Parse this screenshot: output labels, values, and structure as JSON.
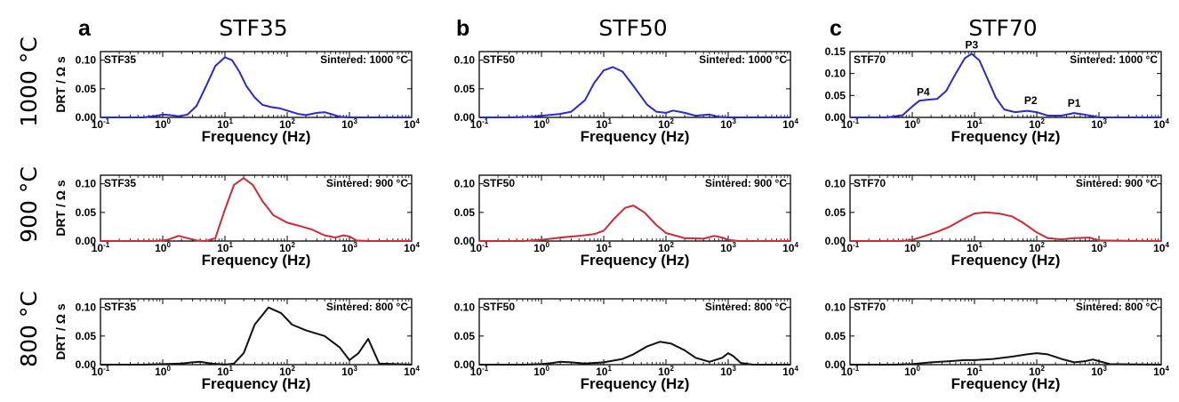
{
  "figure": {
    "columns": [
      {
        "letter": "a",
        "title": "STF35"
      },
      {
        "letter": "b",
        "title": "STF50"
      },
      {
        "letter": "c",
        "title": "STF70"
      }
    ],
    "rows": [
      {
        "label": "1000 °C",
        "color": "#2a2acc"
      },
      {
        "label": "900 °C",
        "color": "#cc2a36"
      },
      {
        "label": "800 °C",
        "color": "#111111"
      }
    ]
  },
  "chart_data": [
    {
      "type": "line",
      "panel_label": "STF35",
      "annotation": "Sintered: 1000 °C",
      "series_color": "#2a2acc",
      "xscale": "log",
      "xlim": [
        0.1,
        10000
      ],
      "ylim": [
        0,
        0.115
      ],
      "yticks": [
        "0.00",
        "0.05",
        "0.10"
      ],
      "xlabel": "Frequency (Hz)",
      "ylabel": "DRT / Ω s",
      "grid": false,
      "x": [
        0.1,
        0.5,
        0.8,
        1.0,
        1.3,
        1.8,
        2.5,
        3.5,
        5,
        7,
        10,
        13,
        17,
        22,
        30,
        40,
        55,
        75,
        100,
        150,
        200,
        300,
        400,
        500,
        700,
        1000,
        10000
      ],
      "y": [
        0,
        0.0,
        0.003,
        0.005,
        0.004,
        0.002,
        0.005,
        0.02,
        0.055,
        0.09,
        0.105,
        0.1,
        0.08,
        0.055,
        0.035,
        0.022,
        0.018,
        0.016,
        0.012,
        0.006,
        0.004,
        0.008,
        0.009,
        0.006,
        0.001,
        0,
        0
      ]
    },
    {
      "type": "line",
      "panel_label": "STF50",
      "annotation": "Sintered: 1000 °C",
      "series_color": "#2a2acc",
      "xscale": "log",
      "xlim": [
        0.1,
        10000
      ],
      "ylim": [
        0,
        0.115
      ],
      "yticks": [
        "0.00",
        "0.05",
        "0.10"
      ],
      "xlabel": "Frequency (Hz)",
      "ylabel": "",
      "grid": false,
      "x": [
        0.1,
        0.3,
        0.7,
        1,
        2,
        3,
        5,
        7,
        10,
        14,
        20,
        30,
        50,
        70,
        100,
        130,
        200,
        300,
        500,
        700,
        1000,
        10000
      ],
      "y": [
        0,
        0,
        0.001,
        0.003,
        0.006,
        0.01,
        0.03,
        0.06,
        0.082,
        0.088,
        0.08,
        0.055,
        0.022,
        0.01,
        0.008,
        0.012,
        0.008,
        0.003,
        0.005,
        0.001,
        0,
        0
      ]
    },
    {
      "type": "line",
      "panel_label": "STF70",
      "annotation": "Sintered: 1000 °C",
      "series_color": "#2a2acc",
      "xscale": "log",
      "xlim": [
        0.1,
        10000
      ],
      "ylim": [
        0,
        0.15
      ],
      "yticks": [
        "0.00",
        "0.05",
        "0.10",
        "0.15"
      ],
      "xlabel": "Frequency (Hz)",
      "ylabel": "",
      "grid": false,
      "peaks": [
        {
          "label": "P4",
          "x": 1.5,
          "y": 0.038
        },
        {
          "label": "P3",
          "x": 9,
          "y": 0.145
        },
        {
          "label": "P2",
          "x": 80,
          "y": 0.018
        },
        {
          "label": "P1",
          "x": 400,
          "y": 0.012
        }
      ],
      "x": [
        0.1,
        0.4,
        0.7,
        1.0,
        1.3,
        1.7,
        2.5,
        3.5,
        5,
        7,
        9,
        12,
        16,
        22,
        30,
        45,
        70,
        100,
        150,
        250,
        400,
        600,
        1000,
        10000
      ],
      "y": [
        0,
        0,
        0.005,
        0.025,
        0.038,
        0.04,
        0.042,
        0.06,
        0.1,
        0.135,
        0.145,
        0.13,
        0.09,
        0.045,
        0.018,
        0.012,
        0.015,
        0.012,
        0.004,
        0.004,
        0.01,
        0.006,
        0,
        0
      ]
    },
    {
      "type": "line",
      "panel_label": "STF35",
      "annotation": "Sintered: 900 °C",
      "series_color": "#cc2a36",
      "xscale": "log",
      "xlim": [
        0.1,
        10000
      ],
      "ylim": [
        0,
        0.115
      ],
      "yticks": [
        "0.00",
        "0.05",
        "0.10"
      ],
      "xlabel": "Frequency (Hz)",
      "ylabel": "DRT / Ω s",
      "grid": false,
      "x": [
        0.1,
        0.8,
        1.2,
        1.8,
        2.5,
        3.5,
        5,
        7,
        10,
        14,
        20,
        28,
        40,
        60,
        100,
        150,
        250,
        400,
        600,
        800,
        1000,
        1300,
        2000,
        10000
      ],
      "y": [
        0,
        0,
        0.002,
        0.009,
        0.005,
        0.001,
        0.0,
        0.005,
        0.055,
        0.098,
        0.11,
        0.098,
        0.07,
        0.045,
        0.032,
        0.027,
        0.02,
        0.01,
        0.006,
        0.01,
        0.008,
        0.001,
        0,
        0
      ]
    },
    {
      "type": "line",
      "panel_label": "STF50",
      "annotation": "Sintered: 900 °C",
      "series_color": "#cc2a36",
      "xscale": "log",
      "xlim": [
        0.1,
        10000
      ],
      "ylim": [
        0,
        0.115
      ],
      "yticks": [
        "0.00",
        "0.05",
        "0.10"
      ],
      "xlabel": "Frequency (Hz)",
      "ylabel": "",
      "grid": false,
      "x": [
        0.1,
        0.5,
        1,
        2,
        4,
        7,
        10,
        15,
        22,
        30,
        45,
        70,
        100,
        200,
        400,
        600,
        800,
        1000,
        1500,
        10000
      ],
      "y": [
        0,
        0,
        0.002,
        0.006,
        0.009,
        0.012,
        0.018,
        0.04,
        0.058,
        0.062,
        0.05,
        0.028,
        0.014,
        0.005,
        0.004,
        0.009,
        0.006,
        0.002,
        0,
        0
      ]
    },
    {
      "type": "line",
      "panel_label": "STF70",
      "annotation": "Sintered: 900 °C",
      "series_color": "#cc2a36",
      "xscale": "log",
      "xlim": [
        0.1,
        10000
      ],
      "ylim": [
        0,
        0.115
      ],
      "yticks": [
        "0.00",
        "0.05",
        "0.10"
      ],
      "xlabel": "Frequency (Hz)",
      "ylabel": "",
      "grid": false,
      "x": [
        0.1,
        0.7,
        1,
        1.5,
        2.5,
        4,
        7,
        10,
        15,
        25,
        40,
        60,
        100,
        150,
        250,
        400,
        700,
        1000,
        10000
      ],
      "y": [
        0,
        0,
        0.002,
        0.008,
        0.016,
        0.025,
        0.04,
        0.048,
        0.05,
        0.048,
        0.043,
        0.032,
        0.015,
        0.005,
        0.003,
        0.005,
        0.006,
        0.001,
        0
      ]
    },
    {
      "type": "line",
      "panel_label": "STF35",
      "annotation": "Sintered: 800 °C",
      "series_color": "#111111",
      "xscale": "log",
      "xlim": [
        0.1,
        10000
      ],
      "ylim": [
        0,
        0.115
      ],
      "yticks": [
        "0.00",
        "0.05",
        "0.10"
      ],
      "xlabel": "Frequency (Hz)",
      "ylabel": "DRT / Ω s",
      "grid": false,
      "x": [
        0.1,
        0.5,
        1,
        2,
        3,
        4,
        6,
        10,
        14,
        20,
        30,
        50,
        80,
        120,
        200,
        400,
        700,
        1000,
        1400,
        2000,
        3000,
        10000
      ],
      "y": [
        0,
        0,
        0.001,
        0.002,
        0.004,
        0.005,
        0.002,
        0,
        0.002,
        0.02,
        0.07,
        0.1,
        0.09,
        0.07,
        0.06,
        0.05,
        0.03,
        0.008,
        0.02,
        0.045,
        0.002,
        0
      ]
    },
    {
      "type": "line",
      "panel_label": "STF50",
      "annotation": "Sintered: 800 °C",
      "series_color": "#111111",
      "xscale": "log",
      "xlim": [
        0.1,
        10000
      ],
      "ylim": [
        0,
        0.115
      ],
      "yticks": [
        "0.00",
        "0.05",
        "0.10"
      ],
      "xlabel": "Frequency (Hz)",
      "ylabel": "",
      "grid": false,
      "x": [
        0.1,
        0.5,
        1,
        1.5,
        2,
        3,
        5,
        10,
        20,
        30,
        50,
        80,
        120,
        200,
        300,
        500,
        800,
        1000,
        1200,
        1600,
        2500,
        10000
      ],
      "y": [
        0,
        0,
        0.001,
        0.003,
        0.005,
        0.004,
        0.002,
        0.004,
        0.01,
        0.018,
        0.032,
        0.04,
        0.037,
        0.025,
        0.012,
        0.005,
        0.012,
        0.02,
        0.015,
        0.003,
        0,
        0
      ]
    },
    {
      "type": "line",
      "panel_label": "STF70",
      "annotation": "Sintered: 800 °C",
      "series_color": "#111111",
      "xscale": "log",
      "xlim": [
        0.1,
        10000
      ],
      "ylim": [
        0,
        0.115
      ],
      "yticks": [
        "0.00",
        "0.05",
        "0.10"
      ],
      "xlabel": "Frequency (Hz)",
      "ylabel": "",
      "grid": false,
      "x": [
        0.1,
        0.5,
        1,
        2,
        4,
        7,
        10,
        20,
        40,
        70,
        100,
        150,
        250,
        400,
        600,
        800,
        1000,
        1500,
        10000
      ],
      "y": [
        0,
        0,
        0.001,
        0.004,
        0.006,
        0.008,
        0.008,
        0.01,
        0.014,
        0.018,
        0.02,
        0.018,
        0.01,
        0.004,
        0.006,
        0.009,
        0.006,
        0.001,
        0
      ]
    }
  ]
}
